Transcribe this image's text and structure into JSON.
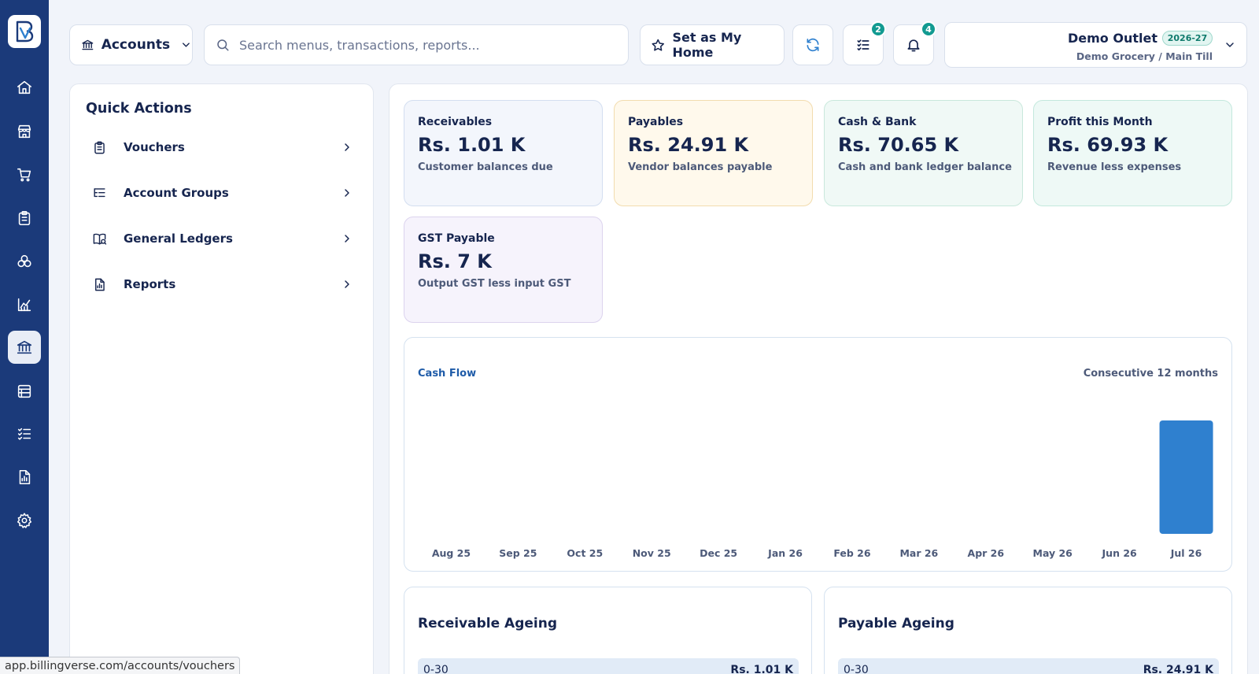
{
  "sidebar": {
    "items": [
      {
        "icon": "home-icon"
      },
      {
        "icon": "store-icon"
      },
      {
        "icon": "cart-icon"
      },
      {
        "icon": "clipboard-icon"
      },
      {
        "icon": "modules-icon"
      },
      {
        "icon": "chart-icon"
      },
      {
        "icon": "bank-icon",
        "active": true
      },
      {
        "icon": "ledger-icon"
      },
      {
        "icon": "tasks-icon"
      },
      {
        "icon": "report-icon"
      },
      {
        "icon": "settings-icon"
      }
    ]
  },
  "topbar": {
    "module_label": "Accounts",
    "search_placeholder": "Search menus, transactions, reports...",
    "home_label": "Set as My Home",
    "tasks_badge": "2",
    "notifications_badge": "4",
    "outlet_name": "Demo Outlet",
    "fiscal_year": "2026-27",
    "outlet_sub": "Demo Grocery / Main Till"
  },
  "quick_actions": {
    "title": "Quick Actions",
    "items": [
      {
        "label": "Vouchers",
        "icon": "clipboard-icon"
      },
      {
        "label": "Account Groups",
        "icon": "list-tree-icon"
      },
      {
        "label": "General Ledgers",
        "icon": "book-icon"
      },
      {
        "label": "Reports",
        "icon": "report-icon"
      }
    ]
  },
  "kpis": [
    {
      "title": "Receivables",
      "value": "Rs. 1.01 K",
      "sub": "Customer balances due",
      "bg": "#f3f6fc",
      "border": "#d3def0"
    },
    {
      "title": "Payables",
      "value": "Rs. 24.91 K",
      "sub": "Vendor balances payable",
      "bg": "#fff9ec",
      "border": "#f2dcae"
    },
    {
      "title": "Cash & Bank",
      "value": "Rs. 70.65 K",
      "sub": "Cash and bank ledger balance",
      "bg": "#f0f9f6",
      "border": "#c9e8dc"
    },
    {
      "title": "Profit this Month",
      "value": "Rs. 69.93 K",
      "sub": "Revenue less expenses",
      "bg": "#eef9f6",
      "border": "#c3e8dd"
    },
    {
      "title": "GST Payable",
      "value": "Rs. 7 K",
      "sub": "Output GST less input GST",
      "bg": "#f6f3fc",
      "border": "#dcd3ee"
    }
  ],
  "cash_flow": {
    "title": "Cash Flow",
    "range_label": "Consecutive 12 months",
    "bar_color": "#2f80cf"
  },
  "chart_data": {
    "type": "bar",
    "title": "Cash Flow",
    "categories": [
      "Aug 25",
      "Sep 25",
      "Oct 25",
      "Nov 25",
      "Dec 25",
      "Jan 26",
      "Feb 26",
      "Mar 26",
      "Apr 26",
      "May 26",
      "Jun 26",
      "Jul 26"
    ],
    "values": [
      0,
      0,
      0,
      0,
      0,
      0,
      0,
      0,
      0,
      0,
      0,
      1
    ],
    "xlabel": "",
    "ylabel": "",
    "grid": false
  },
  "receivable_ageing": {
    "title": "Receivable Ageing",
    "bucket": "0-30",
    "amount": "Rs. 1.01 K"
  },
  "payable_ageing": {
    "title": "Payable Ageing",
    "bucket": "0-30",
    "amount": "Rs. 24.91 K"
  },
  "status_url": "app.billingverse.com/accounts/vouchers"
}
